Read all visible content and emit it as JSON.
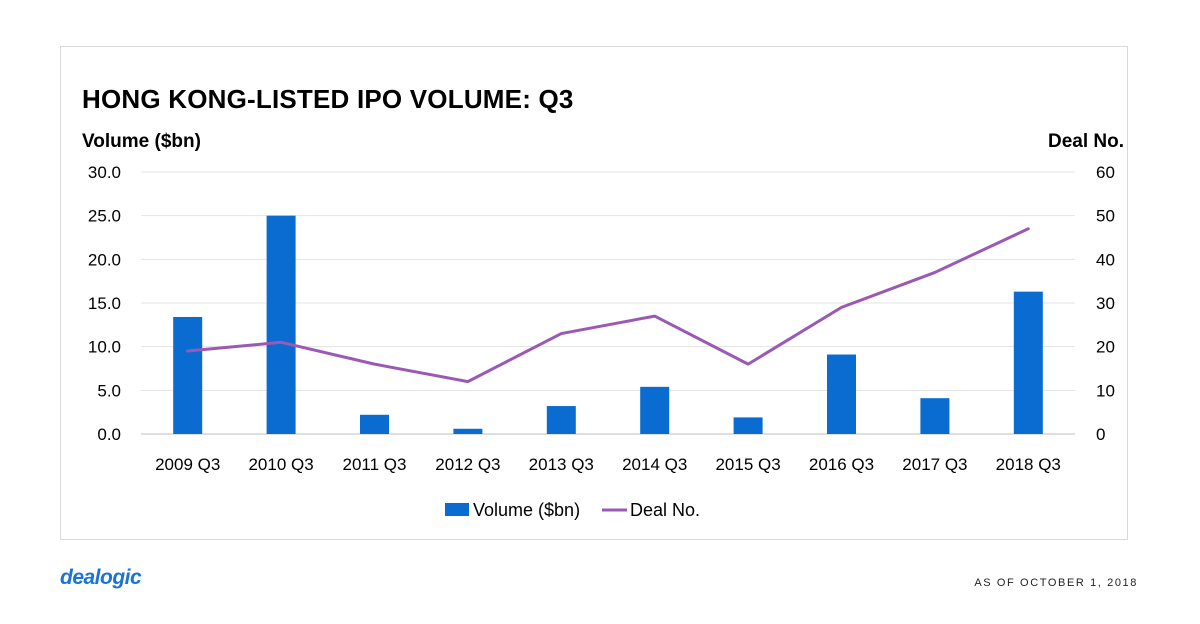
{
  "chart_data": {
    "type": "bar",
    "title": "HONG KONG-LISTED IPO VOLUME: Q3",
    "ylabel": "Volume ($bn)",
    "y2label": "Deal No.",
    "categories": [
      "2009 Q3",
      "2010 Q3",
      "2011 Q3",
      "2012 Q3",
      "2013 Q3",
      "2014 Q3",
      "2015 Q3",
      "2016 Q3",
      "2017 Q3",
      "2018 Q3"
    ],
    "ylim": [
      0,
      30
    ],
    "y2lim": [
      0,
      60
    ],
    "yticks": [
      "0.0",
      "5.0",
      "10.0",
      "15.0",
      "20.0",
      "25.0",
      "30.0"
    ],
    "y2ticks": [
      "0",
      "10",
      "20",
      "30",
      "40",
      "50",
      "60"
    ],
    "series": [
      {
        "name": "Volume ($bn)",
        "kind": "bar",
        "axis": "left",
        "color": "#0a6bd0",
        "values": [
          13.4,
          25.0,
          2.2,
          0.6,
          3.2,
          5.4,
          1.9,
          9.1,
          4.1,
          16.3
        ]
      },
      {
        "name": "Deal No.",
        "kind": "line",
        "axis": "right",
        "color": "#9b59b6",
        "values": [
          19,
          21,
          16,
          12,
          23,
          27,
          16,
          29,
          37,
          47
        ]
      }
    ],
    "legend": "bottom",
    "grid": true
  },
  "footer": {
    "logo": "dealogic",
    "as_of": "AS OF OCTOBER 1, 2018"
  }
}
